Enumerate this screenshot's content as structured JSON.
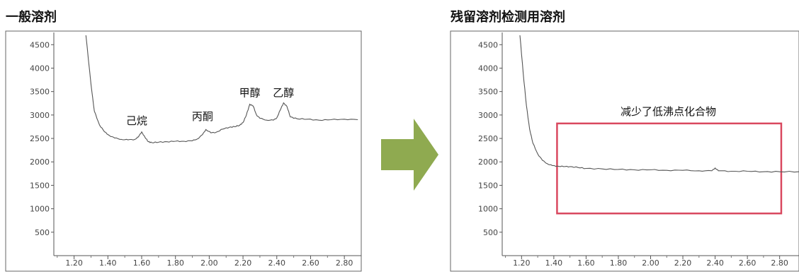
{
  "chart_data": [
    {
      "type": "line",
      "title": "一般溶剂",
      "xlim": [
        1.08,
        2.9
      ],
      "ylim": [
        0,
        4700
      ],
      "x_ticks": [
        "1.20",
        "1.40",
        "1.60",
        "1.80",
        "2.00",
        "2.20",
        "2.40",
        "2.60",
        "2.80"
      ],
      "y_ticks": [
        "4500",
        "4000",
        "3500",
        "3000",
        "2500",
        "2000",
        "1500",
        "1000",
        "500"
      ],
      "series": [
        {
          "x": [
            1.27,
            1.3,
            1.32,
            1.35,
            1.38,
            1.41,
            1.44,
            1.48,
            1.52,
            1.56,
            1.58,
            1.6,
            1.62,
            1.64,
            1.66,
            1.7,
            1.75,
            1.8,
            1.85,
            1.9,
            1.93,
            1.96,
            1.98,
            2.01,
            2.04,
            2.08,
            2.12,
            2.15,
            2.18,
            2.2,
            2.22,
            2.24,
            2.26,
            2.28,
            2.3,
            2.34,
            2.38,
            2.4,
            2.42,
            2.44,
            2.46,
            2.48,
            2.52,
            2.58,
            2.65,
            2.72,
            2.8,
            2.88
          ],
          "y": [
            4700,
            3650,
            3080,
            2790,
            2640,
            2560,
            2510,
            2480,
            2470,
            2480,
            2530,
            2640,
            2520,
            2430,
            2410,
            2420,
            2430,
            2440,
            2440,
            2450,
            2490,
            2580,
            2690,
            2620,
            2630,
            2700,
            2740,
            2750,
            2780,
            2840,
            3000,
            3230,
            3190,
            3000,
            2930,
            2890,
            2890,
            2940,
            3100,
            3260,
            3180,
            2960,
            2920,
            2910,
            2890,
            2900,
            2910,
            2900
          ]
        }
      ],
      "annotations": [
        {
          "text": "己烷",
          "x": 1.57,
          "y": 2800
        },
        {
          "text": "丙酮",
          "x": 1.96,
          "y": 2890
        },
        {
          "text": "甲醇",
          "x": 2.24,
          "y": 3400
        },
        {
          "text": "乙醇",
          "x": 2.44,
          "y": 3400
        }
      ]
    },
    {
      "type": "line",
      "title": "残留溶剂检测用溶剂",
      "xlim": [
        1.08,
        2.92
      ],
      "ylim": [
        0,
        4700
      ],
      "x_ticks": [
        "1.20",
        "1.40",
        "1.60",
        "1.80",
        "2.00",
        "2.20",
        "2.40",
        "2.60",
        "2.80"
      ],
      "y_ticks": [
        "4500",
        "4000",
        "3500",
        "3000",
        "2500",
        "2000",
        "1500",
        "1000",
        "500"
      ],
      "series": [
        {
          "x": [
            1.19,
            1.21,
            1.23,
            1.25,
            1.27,
            1.3,
            1.33,
            1.36,
            1.39,
            1.42,
            1.46,
            1.5,
            1.55,
            1.6,
            1.7,
            1.8,
            1.9,
            2.0,
            2.1,
            2.2,
            2.3,
            2.38,
            2.4,
            2.42,
            2.5,
            2.6,
            2.7,
            2.8,
            2.92
          ],
          "y": [
            4700,
            3900,
            3200,
            2700,
            2400,
            2170,
            2030,
            1960,
            1920,
            1910,
            1900,
            1900,
            1880,
            1860,
            1850,
            1840,
            1830,
            1830,
            1820,
            1820,
            1810,
            1810,
            1870,
            1810,
            1800,
            1800,
            1790,
            1790,
            1790
          ]
        }
      ],
      "box": {
        "x0": 1.42,
        "x1": 2.81,
        "y0": 900,
        "y1": 2820,
        "color": "#d9485f"
      },
      "annotations": [
        {
          "text": "减少了低沸点化合物",
          "x": 2.11,
          "y": 3000
        }
      ]
    }
  ]
}
